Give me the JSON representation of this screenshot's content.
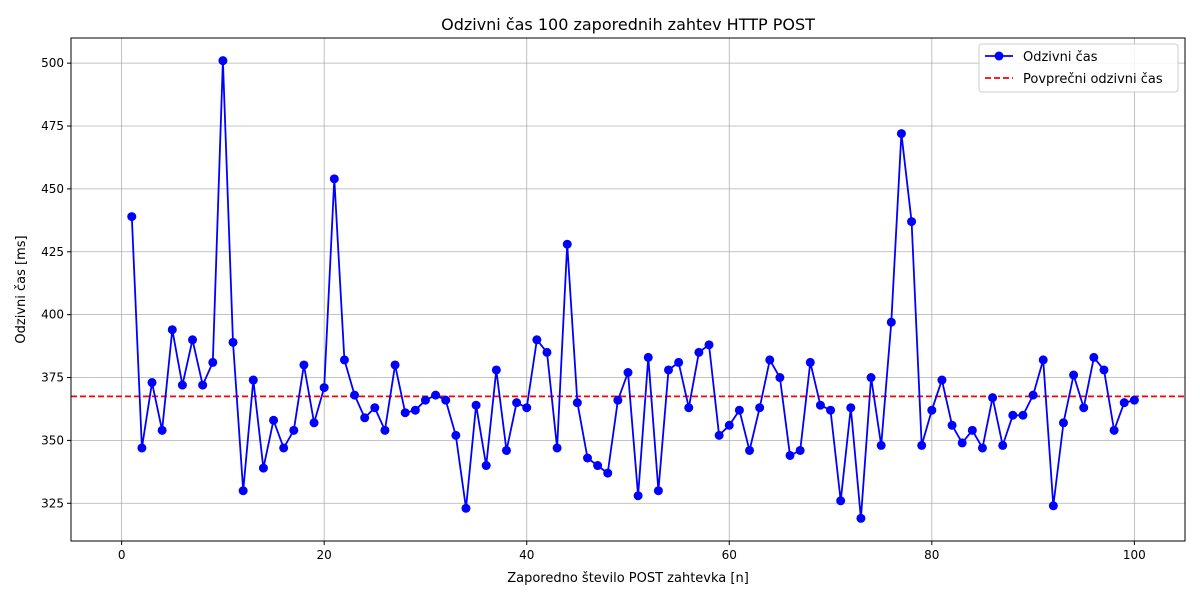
{
  "chart_data": {
    "type": "line",
    "title": "Odzivni čas 100 zaporednih zahtev HTTP POST",
    "xlabel": "Zaporedno število POST zahtevka [n]",
    "ylabel": "Odzivni čas [ms]",
    "xlim": [
      -5,
      105
    ],
    "ylim": [
      310,
      510
    ],
    "xticks": [
      0,
      20,
      40,
      60,
      80,
      100
    ],
    "yticks": [
      325,
      350,
      375,
      400,
      425,
      450,
      475,
      500
    ],
    "grid": true,
    "legend_position": "top-right",
    "series": [
      {
        "name": "Odzivni čas",
        "color": "#0000ff",
        "marker": "circle",
        "x": [
          1,
          2,
          3,
          4,
          5,
          6,
          7,
          8,
          9,
          10,
          11,
          12,
          13,
          14,
          15,
          16,
          17,
          18,
          19,
          20,
          21,
          22,
          23,
          24,
          25,
          26,
          27,
          28,
          29,
          30,
          31,
          32,
          33,
          34,
          35,
          36,
          37,
          38,
          39,
          40,
          41,
          42,
          43,
          44,
          45,
          46,
          47,
          48,
          49,
          50,
          51,
          52,
          53,
          54,
          55,
          56,
          57,
          58,
          59,
          60,
          61,
          62,
          63,
          64,
          65,
          66,
          67,
          68,
          69,
          70,
          71,
          72,
          73,
          74,
          75,
          76,
          77,
          78,
          79,
          80,
          81,
          82,
          83,
          84,
          85,
          86,
          87,
          88,
          89,
          90,
          91,
          92,
          93,
          94,
          95,
          96,
          97,
          98,
          99,
          100
        ],
        "y": [
          439,
          347,
          373,
          354,
          394,
          372,
          390,
          372,
          381,
          501,
          389,
          330,
          374,
          339,
          358,
          347,
          354,
          380,
          357,
          371,
          454,
          382,
          368,
          359,
          363,
          354,
          380,
          361,
          362,
          366,
          368,
          366,
          352,
          323,
          364,
          340,
          378,
          346,
          365,
          363,
          390,
          385,
          347,
          428,
          365,
          343,
          340,
          337,
          366,
          377,
          328,
          383,
          330,
          378,
          381,
          363,
          385,
          388,
          352,
          356,
          362,
          346,
          363,
          382,
          375,
          344,
          346,
          381,
          364,
          362,
          326,
          363,
          319,
          375,
          348,
          397,
          472,
          437,
          348,
          362,
          374,
          356,
          349,
          354,
          347,
          367,
          348,
          360,
          360,
          368,
          382,
          324,
          357,
          376,
          363,
          383,
          378,
          354,
          365,
          366
        ]
      }
    ],
    "reference_lines": [
      {
        "name": "Povprečni odzivni čas",
        "y": 367.5,
        "color": "#ff0000",
        "style": "dashed"
      }
    ]
  }
}
